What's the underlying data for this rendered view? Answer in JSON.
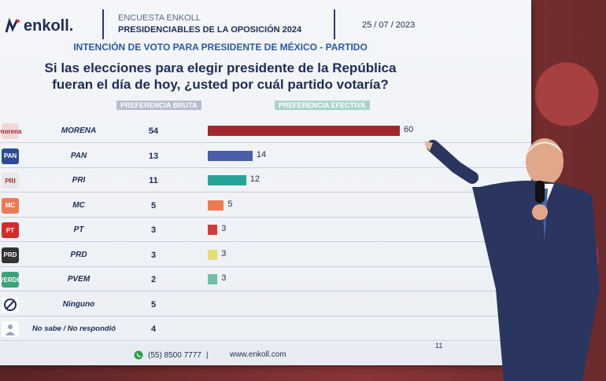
{
  "header": {
    "logo_text": "enkoll.",
    "survey_line1": "ENCUESTA ENKOLL",
    "survey_line2": "PRESIDENCIABLES DE LA OPOSICIÓN 2024",
    "date": "25 / 07 / 2023"
  },
  "subtitle": "INTENCIÓN DE VOTO PARA PRESIDENTE DE MÉXICO - PARTIDO",
  "question_line1": "Si las elecciones para elegir presidente de la República",
  "question_line2": "fueran el día de hoy, ¿usted por cuál partido votaría?",
  "columns": {
    "bruta": "PREFERENCIA BRUTA",
    "efectiva": "PREFERENCIA EFECTIVA"
  },
  "chart_data": {
    "type": "bar",
    "categories": [
      "MORENA",
      "PAN",
      "PRI",
      "MC",
      "PT",
      "PRD",
      "PVEM",
      "Ninguno",
      "No sabe / No respondió"
    ],
    "series": [
      {
        "name": "PREFERENCIA BRUTA",
        "values": [
          54,
          13,
          11,
          5,
          3,
          3,
          2,
          5,
          4
        ]
      },
      {
        "name": "PREFERENCIA EFECTIVA",
        "values": [
          60,
          14,
          12,
          5,
          3,
          3,
          3,
          null,
          null
        ]
      }
    ],
    "bar_colors": [
      "#a3262e",
      "#4b5fa8",
      "#26a49a",
      "#ee7a52",
      "#d43a3a",
      "#e6dd6e",
      "#6ec2a8"
    ],
    "icons": [
      "morena-logo-icon",
      "pan-logo-icon",
      "pri-logo-icon",
      "mc-logo-icon",
      "pt-logo-icon",
      "prd-logo-icon",
      "pvem-logo-icon",
      "prohibited-icon",
      "question-person-icon"
    ],
    "xlim": [
      0,
      60
    ]
  },
  "footer": {
    "phone": "(55) 8500 7777",
    "separator": "|",
    "website": "www.enkoll.com",
    "page": "11"
  }
}
